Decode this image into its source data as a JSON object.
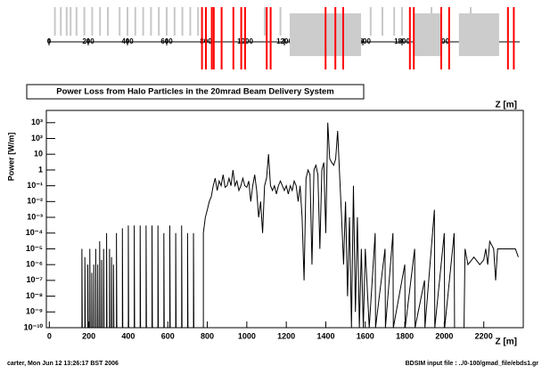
{
  "chart_data": [
    {
      "type": "beamline",
      "xlim": [
        0,
        2400
      ],
      "xticks": [
        0,
        200,
        400,
        600,
        800,
        1000,
        1200,
        1400,
        1600,
        1800,
        2000,
        2200
      ],
      "markers": [
        30,
        60,
        90,
        110,
        140,
        180,
        220,
        260,
        300,
        360,
        400,
        440,
        480,
        520,
        560,
        600,
        640,
        680,
        720,
        760,
        1000,
        1100,
        1180,
        1640,
        1700,
        1760,
        1800,
        1950,
        2150,
        2340
      ],
      "magnets": [
        780,
        800,
        830,
        840,
        880,
        940,
        980,
        1000,
        1110,
        1130,
        1410,
        1460,
        1500,
        1840,
        1860,
        2000,
        2040,
        2340,
        2370
      ],
      "blocks": [
        [
          1227,
          1591
        ],
        [
          1855,
          2000
        ],
        [
          2090,
          2295
        ]
      ],
      "marker_color": "#c8c8c8",
      "magnet_color": "#ff0000",
      "block_color": "#cccccc",
      "xlabel": "Z [m]"
    },
    {
      "type": "line",
      "title": "Power Loss from Halo Particles in the 20mrad Beam Delivery System",
      "xlabel": "Z [m]",
      "ylabel": "Power [W/m]",
      "color": "#000000",
      "log_y": true,
      "xlim": [
        -15,
        2400
      ],
      "ylim": [
        1e-10,
        6000
      ],
      "xticks": [
        0,
        200,
        400,
        600,
        800,
        1000,
        1200,
        1400,
        1600,
        1800,
        2000,
        2200
      ],
      "yticks": [
        {
          "value": 1e-10,
          "label": "10⁻¹⁰"
        },
        {
          "value": 1e-09,
          "label": "10⁻⁹"
        },
        {
          "value": 1e-08,
          "label": "10⁻⁸"
        },
        {
          "value": 1e-07,
          "label": "10⁻⁷"
        },
        {
          "value": 1e-06,
          "label": "10⁻⁶"
        },
        {
          "value": 1e-05,
          "label": "10⁻⁵"
        },
        {
          "value": 0.0001,
          "label": "10⁻⁴"
        },
        {
          "value": 0.001,
          "label": "10⁻³"
        },
        {
          "value": 0.01,
          "label": "10⁻²"
        },
        {
          "value": 0.1,
          "label": "10⁻¹"
        },
        1,
        10,
        {
          "value": 100,
          "label": "10²"
        },
        {
          "value": 1000,
          "label": "10³"
        }
      ],
      "x": [
        0,
        150,
        165,
        165,
        167,
        180,
        180,
        182,
        195,
        195,
        197,
        205,
        205,
        207,
        215,
        215,
        217,
        225,
        225,
        227,
        235,
        235,
        237,
        245,
        245,
        247,
        255,
        255,
        257,
        265,
        265,
        267,
        275,
        275,
        277,
        290,
        290,
        292,
        305,
        305,
        307,
        315,
        315,
        317,
        325,
        325,
        327,
        340,
        340,
        342,
        370,
        370,
        372,
        400,
        400,
        402,
        430,
        430,
        432,
        460,
        460,
        462,
        490,
        490,
        492,
        520,
        520,
        522,
        550,
        550,
        552,
        580,
        580,
        582,
        610,
        610,
        612,
        640,
        640,
        642,
        670,
        670,
        672,
        700,
        700,
        702,
        730,
        730,
        732,
        780,
        780,
        790,
        800,
        810,
        820,
        830,
        840,
        850,
        860,
        870,
        880,
        890,
        900,
        910,
        920,
        930,
        940,
        950,
        960,
        970,
        980,
        990,
        1000,
        1010,
        1020,
        1030,
        1040,
        1050,
        1060,
        1070,
        1080,
        1090,
        1100,
        1110,
        1120,
        1130,
        1140,
        1150,
        1160,
        1170,
        1180,
        1190,
        1200,
        1210,
        1220,
        1230,
        1240,
        1250,
        1260,
        1270,
        1280,
        1290,
        1300,
        1310,
        1320,
        1330,
        1340,
        1350,
        1360,
        1370,
        1380,
        1390,
        1400,
        1410,
        1420,
        1430,
        1440,
        1450,
        1460,
        1470,
        1480,
        1490,
        1500,
        1510,
        1520,
        1530,
        1540,
        1550,
        1560,
        1570,
        1580,
        1590,
        1600,
        1620,
        1650,
        1652,
        1700,
        1702,
        1740,
        1742,
        1800,
        1802,
        1850,
        1852,
        1900,
        1902,
        1950,
        1952,
        2000,
        2002,
        2050,
        2052,
        2100,
        2105,
        2120,
        2150,
        2180,
        2200,
        2210,
        2220,
        2230,
        2250,
        2260,
        2270,
        2300,
        2330,
        2360,
        2375
      ],
      "values": [
        1e-10,
        1e-10,
        1e-10,
        1e-05,
        1e-10,
        1e-10,
        3e-06,
        1e-10,
        1e-10,
        1e-06,
        1e-10,
        1e-10,
        1e-05,
        1e-10,
        1e-10,
        3e-07,
        1e-10,
        1e-10,
        1e-06,
        1e-10,
        1e-10,
        1e-05,
        1e-10,
        1e-10,
        1e-06,
        1e-10,
        1e-10,
        3e-05,
        1e-10,
        1e-10,
        2e-06,
        1e-10,
        1e-10,
        1e-05,
        1e-10,
        1e-10,
        0.0001,
        1e-10,
        1e-10,
        1e-05,
        1e-10,
        1e-10,
        3e-06,
        1e-10,
        1e-10,
        1e-06,
        1e-10,
        1e-10,
        0.0001,
        1e-10,
        1e-10,
        0.0002,
        1e-10,
        1e-10,
        0.0003,
        1e-10,
        1e-10,
        0.0003,
        1e-10,
        1e-10,
        0.0003,
        1e-10,
        1e-10,
        0.0003,
        1e-10,
        1e-10,
        0.0003,
        1e-10,
        1e-10,
        0.0003,
        1e-10,
        1e-10,
        0.0001,
        1e-10,
        1e-10,
        0.0003,
        1e-10,
        1e-10,
        0.0001,
        1e-10,
        1e-10,
        0.0003,
        1e-10,
        1e-10,
        0.0001,
        1e-10,
        1e-10,
        0.0001,
        1e-10,
        1e-10,
        0.0001,
        0.001,
        0.003,
        0.01,
        0.02,
        0.1,
        0.3,
        0.05,
        0.2,
        0.1,
        0.5,
        0.08,
        0.1,
        0.3,
        0.1,
        1,
        0.1,
        0.2,
        0.05,
        0.1,
        0.3,
        0.1,
        0.08,
        0.2,
        0.01,
        0.1,
        0.5,
        0.05,
        0.001,
        0.01,
        0.0001,
        0.1,
        0.3,
        10,
        0.1,
        0.05,
        0.1,
        0.03,
        0.1,
        0.2,
        0.1,
        0.05,
        0.1,
        0.03,
        0.1,
        0.05,
        0.2,
        0.1,
        0.01,
        0.1,
        0.001,
        1e-07,
        0.3,
        1,
        0.5,
        1e-06,
        1,
        2,
        0.5,
        1e-05,
        1,
        3,
        0.0001,
        1000,
        5,
        3,
        2,
        5,
        300,
        0.5,
        0.001,
        1e-06,
        0.01,
        1e-08,
        0.001,
        1e-10,
        0.1,
        1e-09,
        0.001,
        1e-10,
        1e-05,
        1e-10,
        1e-05,
        1e-10,
        0.0001,
        1e-10,
        1e-05,
        1e-10,
        0.0001,
        1e-10,
        1e-06,
        1e-10,
        1e-05,
        1e-10,
        1e-07,
        1e-10,
        0.003,
        1e-10,
        0.0001,
        1e-10,
        0.0001,
        1e-10,
        1e-10,
        1e-05,
        1e-06,
        3e-06,
        1e-06,
        2e-06,
        1e-05,
        1e-06,
        3e-05,
        1e-05,
        1e-07,
        1e-05,
        1e-05,
        1e-05,
        1e-05,
        3e-06
      ]
    }
  ],
  "footer": {
    "left": "carter, Mon Jun 12 13:26:17 BST 2006",
    "right": "BDSIM input file : ../0-100/gmad_file/ebds1.gr"
  }
}
